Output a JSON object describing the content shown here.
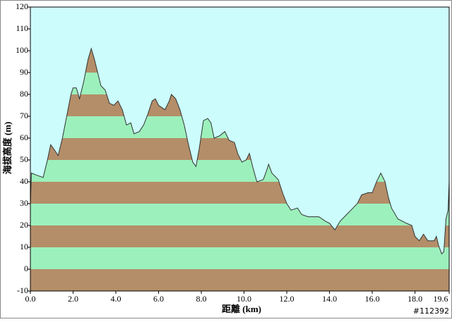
{
  "chart_data": {
    "type": "area",
    "x_label": "距離 (km)",
    "y_label": "海拔高度 (m)",
    "watermark": "#112392",
    "background": "#ccfcfc",
    "band_colors": [
      "#9cf0bc",
      "#b48e68"
    ],
    "line_color": "#333333",
    "xlim": [
      0,
      19.6
    ],
    "ylim": [
      -10,
      120
    ],
    "xticks": [
      {
        "value": 0,
        "label": "0.0"
      },
      {
        "value": 2,
        "label": "2.0"
      },
      {
        "value": 4,
        "label": "4.0"
      },
      {
        "value": 6,
        "label": "6.0"
      },
      {
        "value": 8,
        "label": "8.0"
      },
      {
        "value": 10,
        "label": "10.0"
      },
      {
        "value": 12,
        "label": "12.0"
      },
      {
        "value": 14,
        "label": "14.0"
      },
      {
        "value": 16,
        "label": "16.0"
      },
      {
        "value": 18,
        "label": "18.0"
      },
      19.6
    ],
    "yticks": [
      -10,
      0,
      10,
      20,
      30,
      40,
      50,
      60,
      70,
      80,
      90,
      100,
      110,
      120
    ],
    "x": [
      0,
      0.05,
      0.3,
      0.6,
      0.8,
      0.95,
      1.1,
      1.3,
      1.5,
      1.7,
      1.9,
      2.0,
      2.15,
      2.3,
      2.5,
      2.7,
      2.85,
      3.0,
      3.2,
      3.3,
      3.5,
      3.7,
      3.9,
      4.1,
      4.3,
      4.5,
      4.7,
      4.85,
      5.1,
      5.3,
      5.5,
      5.7,
      5.85,
      6.0,
      6.3,
      6.5,
      6.6,
      6.8,
      7.0,
      7.2,
      7.4,
      7.6,
      7.75,
      7.9,
      8.1,
      8.3,
      8.45,
      8.6,
      8.85,
      9.1,
      9.3,
      9.55,
      9.7,
      9.9,
      10.1,
      10.25,
      10.4,
      10.6,
      10.9,
      11.05,
      11.15,
      11.3,
      11.6,
      11.8,
      12.0,
      12.2,
      12.5,
      12.7,
      13.0,
      13.5,
      13.8,
      14.0,
      14.25,
      14.5,
      14.8,
      15.0,
      15.3,
      15.5,
      15.8,
      16.0,
      16.2,
      16.4,
      16.6,
      16.75,
      16.9,
      17.2,
      17.6,
      17.85,
      18.0,
      18.2,
      18.4,
      18.6,
      18.9,
      19.0,
      19.1,
      19.25,
      19.35,
      19.45,
      19.55,
      19.6
    ],
    "values": [
      30,
      44,
      43,
      42,
      50,
      57,
      55,
      52,
      60,
      70,
      80,
      83,
      83,
      78,
      86,
      96,
      101,
      96,
      88,
      84,
      82,
      76,
      75,
      77,
      73,
      66,
      67,
      62,
      63,
      66,
      71,
      77,
      78,
      75,
      73,
      77,
      80,
      78,
      73,
      66,
      57,
      49,
      47,
      55,
      68,
      69,
      67,
      60,
      61,
      63,
      59,
      58,
      53,
      49,
      50,
      53,
      47,
      40,
      41,
      45,
      48,
      44,
      41,
      35,
      30,
      27,
      28,
      25,
      24,
      24,
      22,
      21,
      18,
      22,
      25,
      27,
      30,
      34,
      35,
      35,
      40,
      44,
      40,
      33,
      28,
      23,
      21,
      20,
      15,
      13,
      16,
      13,
      13,
      15,
      11,
      7,
      8,
      23,
      27,
      40
    ]
  }
}
